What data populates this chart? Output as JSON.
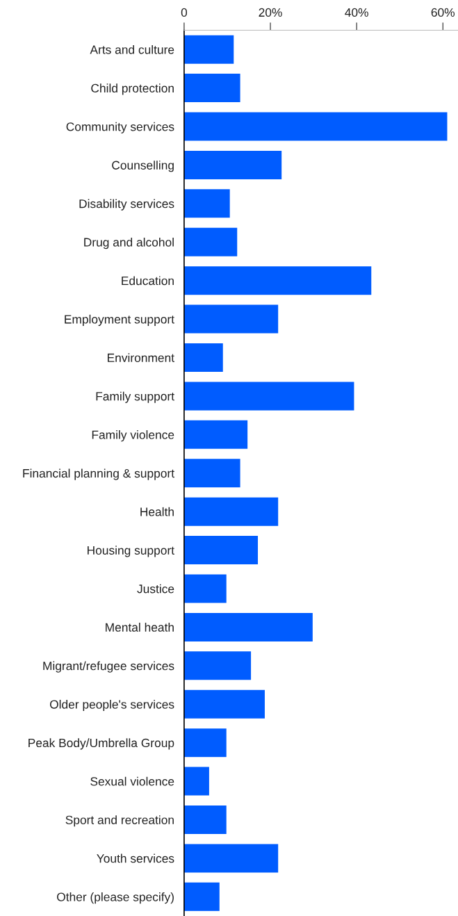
{
  "chart_data": {
    "type": "bar",
    "orientation": "horizontal",
    "color": "#005cff",
    "categories": [
      "Arts and culture",
      "Child protection",
      "Community services",
      "Counselling",
      "Disability services",
      "Drug and alcohol",
      "Education",
      "Employment support",
      "Environment",
      "Family support",
      "Family violence",
      "Financial planning & support",
      "Health",
      "Housing support",
      "Justice",
      "Mental heath",
      "Migrant/refugee services",
      "Older people's services",
      "Peak Body/Umbrella Group",
      "Sexual violence",
      "Sport and recreation",
      "Youth services",
      "Other (please specify)"
    ],
    "values": [
      11.5,
      13,
      61,
      22.6,
      10.6,
      12.3,
      43.4,
      21.8,
      9,
      39.4,
      14.7,
      13,
      21.8,
      17.1,
      9.8,
      29.8,
      15.5,
      18.7,
      9.8,
      5.8,
      9.8,
      21.8,
      8.2
    ],
    "xlim": [
      0,
      63.5
    ],
    "xticks": [
      0,
      {
        "value": 20,
        "label": "20%"
      },
      {
        "value": 40,
        "label": "40%"
      },
      {
        "value": 60,
        "label": "60%"
      }
    ],
    "grid": false,
    "legend": false
  }
}
